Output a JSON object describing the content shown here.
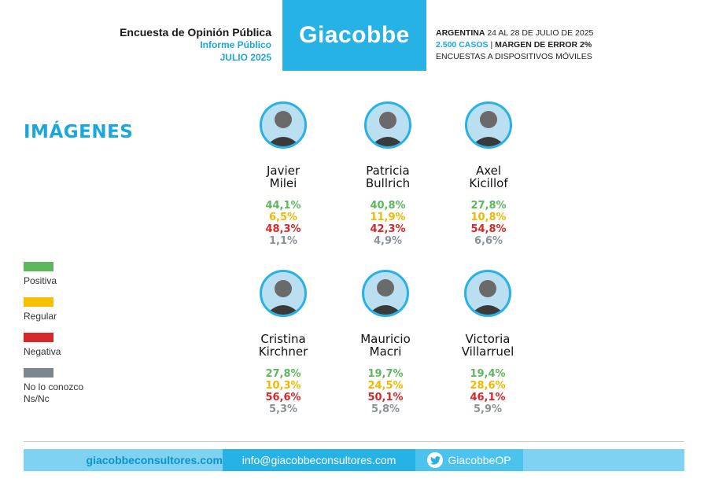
{
  "header": {
    "title": "Encuesta de Opinión Pública",
    "subtitle": "Informe Público",
    "date": "JULIO 2025",
    "brand": "Giacobbe",
    "country": "ARGENTINA",
    "field_dates": "24 AL 28 DE JULIO DE 2025",
    "cases": "2.500 CASOS",
    "separator": "|",
    "margin": "MARGEN DE ERROR 2%",
    "method": "ENCUESTAS A DISPOSITIVOS MÓVILES"
  },
  "section_title": "IMÁGENES",
  "legend": [
    {
      "label": "Positiva",
      "color": "#5cb85c"
    },
    {
      "label": "Regular",
      "color": "#f5c000"
    },
    {
      "label": "Negativa",
      "color": "#d62828"
    },
    {
      "label": "No lo conozco",
      "label2": "Ns/Nc",
      "color": "#7d868c"
    }
  ],
  "chart_data": {
    "type": "table",
    "categories": [
      "Positiva",
      "Regular",
      "Negativa",
      "No lo conozco Ns/Nc"
    ],
    "people": [
      {
        "first": "Javier",
        "last": "Milei",
        "pos": "44,1%",
        "reg": "6,5%",
        "neg": "48,3%",
        "nc": "1,1%"
      },
      {
        "first": "Patricia",
        "last": "Bullrich",
        "pos": "40,8%",
        "reg": "11,9%",
        "neg": "42,3%",
        "nc": "4,9%"
      },
      {
        "first": "Axel",
        "last": "Kicillof",
        "pos": "27,8%",
        "reg": "10,8%",
        "neg": "54,8%",
        "nc": "6,6%"
      },
      {
        "first": "Cristina",
        "last": "Kirchner",
        "pos": "27,8%",
        "reg": "10,3%",
        "neg": "56,6%",
        "nc": "5,3%"
      },
      {
        "first": "Mauricio",
        "last": "Macri",
        "pos": "19,7%",
        "reg": "24,5%",
        "neg": "50,1%",
        "nc": "5,8%"
      },
      {
        "first": "Victoria",
        "last": "Villarruel",
        "pos": "19,4%",
        "reg": "28,6%",
        "neg": "46,1%",
        "nc": "5,9%"
      }
    ]
  },
  "footer": {
    "website": "giacobbeconsultores.com",
    "email": "info@giacobbeconsultores.com",
    "twitter": "GiacobbeOP",
    "twitter_icon": "twitter-bird-icon"
  },
  "colors": {
    "brand_blue": "#27b2e6",
    "light_blue": "#7fd2f2"
  }
}
